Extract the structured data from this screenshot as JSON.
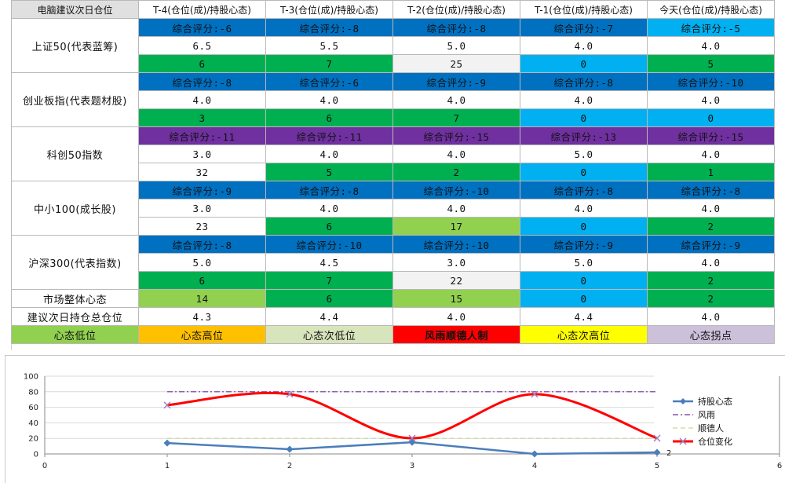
{
  "header": {
    "title": "电脑建议次日仓位",
    "columns": [
      "T-4(仓位(成)/持股心态)",
      "T-3(仓位(成)/持股心态)",
      "T-2(仓位(成)/持股心态)",
      "T-1(仓位(成)/持股心态)",
      "今天(仓位(成)/持股心态)"
    ]
  },
  "indices": [
    {
      "name": "上证50(代表蓝筹)",
      "scores": [
        "综合评分:-6",
        "综合评分:-8",
        "综合评分:-8",
        "综合评分:-7",
        "综合评分:-5"
      ],
      "score_colors": [
        "#0070c0",
        "#0070c0",
        "#0070c0",
        "#0070c0",
        "#00b0f0"
      ],
      "positions": [
        "6.5",
        "5.5",
        "5.0",
        "4.0",
        "4.0"
      ],
      "mood": [
        "6",
        "7",
        "25",
        "0",
        "5"
      ],
      "mood_colors": [
        "#00b050",
        "#00b050",
        "#f2f2f2",
        "#00b0f0",
        "#00b050"
      ]
    },
    {
      "name": "创业板指(代表题材股)",
      "scores": [
        "综合评分:-8",
        "综合评分:-6",
        "综合评分:-9",
        "综合评分:-8",
        "综合评分:-10"
      ],
      "score_colors": [
        "#0070c0",
        "#0070c0",
        "#0070c0",
        "#0070c0",
        "#0070c0"
      ],
      "positions": [
        "4.0",
        "4.0",
        "4.0",
        "4.0",
        "4.0"
      ],
      "mood": [
        "3",
        "6",
        "7",
        "0",
        "0"
      ],
      "mood_colors": [
        "#00b050",
        "#00b050",
        "#00b050",
        "#00b0f0",
        "#00b0f0"
      ]
    },
    {
      "name": "科创50指数",
      "scores": [
        "综合评分:-11",
        "综合评分:-11",
        "综合评分:-15",
        "综合评分:-13",
        "综合评分:-15"
      ],
      "score_colors": [
        "#7030a0",
        "#7030a0",
        "#7030a0",
        "#7030a0",
        "#7030a0"
      ],
      "positions": [
        "3.0",
        "4.0",
        "4.0",
        "5.0",
        "4.0"
      ],
      "mood": [
        "32",
        "5",
        "2",
        "0",
        "1"
      ],
      "mood_colors": [
        "#ffffff",
        "#00b050",
        "#00b050",
        "#00b0f0",
        "#00b050"
      ]
    },
    {
      "name": "中小100(成长股)",
      "scores": [
        "综合评分:-9",
        "综合评分:-8",
        "综合评分:-10",
        "综合评分:-8",
        "综合评分:-8"
      ],
      "score_colors": [
        "#0070c0",
        "#0070c0",
        "#0070c0",
        "#0070c0",
        "#0070c0"
      ],
      "positions": [
        "3.0",
        "4.0",
        "4.0",
        "4.0",
        "4.0"
      ],
      "mood": [
        "23",
        "6",
        "17",
        "0",
        "2"
      ],
      "mood_colors": [
        "#ffffff",
        "#00b050",
        "#92d050",
        "#00b0f0",
        "#00b050"
      ]
    },
    {
      "name": "沪深300(代表指数)",
      "scores": [
        "综合评分:-8",
        "综合评分:-10",
        "综合评分:-10",
        "综合评分:-9",
        "综合评分:-9"
      ],
      "score_colors": [
        "#0070c0",
        "#0070c0",
        "#0070c0",
        "#0070c0",
        "#0070c0"
      ],
      "positions": [
        "5.0",
        "4.5",
        "3.0",
        "5.0",
        "4.0"
      ],
      "mood": [
        "6",
        "7",
        "22",
        "0",
        "2"
      ],
      "mood_colors": [
        "#00b050",
        "#00b050",
        "#f2f2f2",
        "#00b0f0",
        "#00b050"
      ]
    }
  ],
  "market": {
    "label": "市场整体心态",
    "values": [
      "14",
      "6",
      "15",
      "0",
      "2"
    ],
    "colors": [
      "#92d050",
      "#00b050",
      "#92d050",
      "#00b0f0",
      "#00b050"
    ]
  },
  "suggest": {
    "label": "建议次日持仓总仓位",
    "values": [
      "4.3",
      "4.4",
      "4.0",
      "4.4",
      "4.0"
    ]
  },
  "states": {
    "labels": [
      "心态低位",
      "心态高位",
      "心态次低位",
      "风雨顺德人制",
      "心态次高位",
      "心态拐点"
    ],
    "colors": [
      "#92d050",
      "#ffc000",
      "#d8e4bc",
      "#ff0000",
      "#ffff00",
      "#ccc0da"
    ]
  },
  "chart_data": {
    "type": "line",
    "x_ticks": [
      "0",
      "1",
      "2",
      "3",
      "4",
      "5",
      "6"
    ],
    "y_ticks": [
      "0",
      "20",
      "40",
      "60",
      "80",
      "100"
    ],
    "ylim": [
      0,
      100
    ],
    "xlim": [
      0,
      6
    ],
    "legend_position": "right",
    "series": [
      {
        "name": "持股心态",
        "x": [
          1,
          2,
          3,
          4,
          5
        ],
        "y": [
          14,
          6,
          15,
          0,
          2
        ],
        "color": "#4a7ebb",
        "style": "line-diamond",
        "last_label": "2"
      },
      {
        "name": "风雨",
        "x": [
          1,
          2,
          3,
          4,
          5
        ],
        "y": [
          80,
          80,
          80,
          80,
          80
        ],
        "color": "#7030a0",
        "style": "dash-dot"
      },
      {
        "name": "顺德人",
        "x": [
          1,
          2,
          3,
          4,
          5
        ],
        "y": [
          20,
          20,
          20,
          20,
          20
        ],
        "color": "#c3d69b",
        "style": "dash"
      },
      {
        "name": "仓位变化",
        "x": [
          1,
          2,
          3,
          4,
          5
        ],
        "y": [
          4.3,
          4.4,
          4.0,
          4.4,
          4.0
        ],
        "color": "#ff0000",
        "style": "smooth-x",
        "axis": "secondary"
      }
    ]
  }
}
